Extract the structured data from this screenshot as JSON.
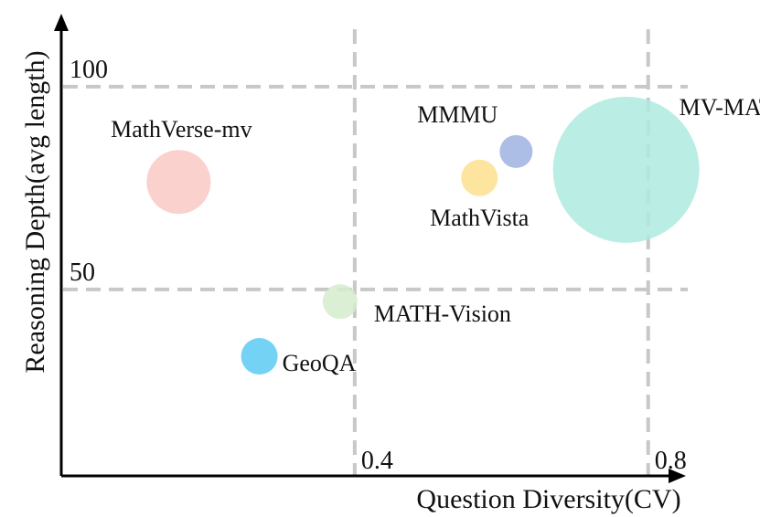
{
  "chart_data": {
    "type": "scatter",
    "subtype": "bubble",
    "title": "",
    "xlabel": "Question Diversity(CV)",
    "ylabel": "Reasoning  Depth(avg length)",
    "x_ticks": [
      0.4,
      0.8
    ],
    "x_tick_labels": [
      "0.4",
      "0.8"
    ],
    "y_ticks": [
      50,
      100
    ],
    "y_tick_labels": [
      "50",
      "100"
    ],
    "xlim": [
      0.0,
      0.92
    ],
    "ylim": [
      4,
      118
    ],
    "grid": "dashed lines at tick positions",
    "legend": "none (labels placed next to bubbles)",
    "points": [
      {
        "name": "MathVerse-mv",
        "x": 0.16,
        "y": 76.5,
        "size": 35,
        "color": "#f9c9c4",
        "label_pos": "above"
      },
      {
        "name": "MMMU",
        "x": 0.62,
        "y": 84.0,
        "size": 18,
        "color": "#9db1e2",
        "label_pos": "above-left"
      },
      {
        "name": "MathVista",
        "x": 0.57,
        "y": 77.5,
        "size": 20,
        "color": "#fde08f",
        "label_pos": "below"
      },
      {
        "name": "MV-MATH",
        "x": 0.77,
        "y": 79.5,
        "size": 80,
        "color": "#aeeadf",
        "label_pos": "above-right"
      },
      {
        "name": "MATH-Vision",
        "x": 0.38,
        "y": 47.0,
        "size": 19,
        "color": "#d3eccc",
        "label_pos": "right"
      },
      {
        "name": "GeoQA",
        "x": 0.27,
        "y": 33.5,
        "size": 20,
        "color": "#5ccaf2",
        "label_pos": "right"
      }
    ]
  }
}
